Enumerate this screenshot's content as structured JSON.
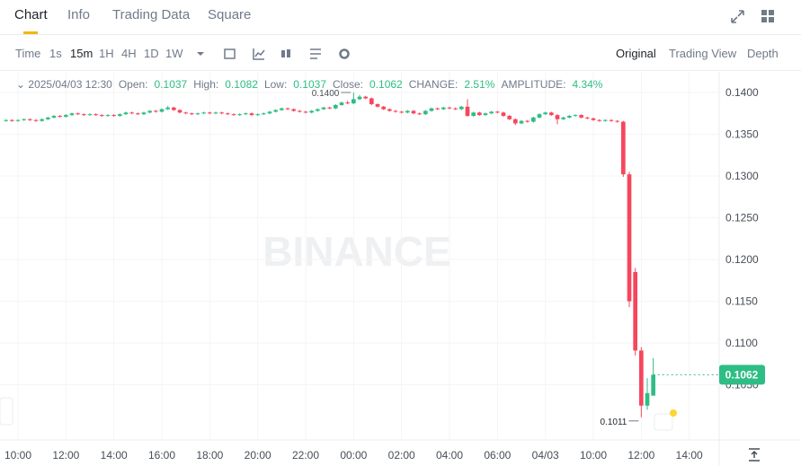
{
  "tabs": [
    "Chart",
    "Info",
    "Trading Data",
    "Square"
  ],
  "toolbar": {
    "intervals": [
      "Time",
      "1s",
      "15m",
      "1H",
      "4H",
      "1D",
      "1W"
    ],
    "views": [
      "Original",
      "Trading View",
      "Depth"
    ]
  },
  "info": {
    "date": "2025/04/03 12:30",
    "open_label": "Open:",
    "high_label": "High:",
    "low_label": "Low:",
    "close_label": "Close:",
    "change_label": "CHANGE:",
    "change": "2.51%",
    "amplitude_label": "AMPLITUDE:",
    "amplitude": "4.34%"
  },
  "watermark": "BINANCE",
  "chart_data": {
    "type": "candlestick",
    "up_color": "#2ebd85",
    "down_color": "#f6465d",
    "grid": true,
    "xlim": [
      9.25,
      39.25
    ],
    "xticks": [
      {
        "value": 10,
        "label": "10:00"
      },
      {
        "value": 12,
        "label": "12:00"
      },
      {
        "value": 14,
        "label": "14:00"
      },
      {
        "value": 16,
        "label": "16:00"
      },
      {
        "value": 18,
        "label": "18:00"
      },
      {
        "value": 20,
        "label": "20:00"
      },
      {
        "value": 22,
        "label": "22:00"
      },
      {
        "value": 24,
        "label": "00:00"
      },
      {
        "value": 26,
        "label": "02:00"
      },
      {
        "value": 28,
        "label": "04:00"
      },
      {
        "value": 30,
        "label": "06:00"
      },
      {
        "value": 32,
        "label": "04/03"
      },
      {
        "value": 34,
        "label": "10:00"
      },
      {
        "value": 36,
        "label": "12:00"
      },
      {
        "value": 38,
        "label": "14:00"
      }
    ],
    "ylim": [
      0.09839,
      0.14226
    ],
    "yticks": [
      {
        "value": 0.105,
        "label": "0.1050"
      },
      {
        "value": 0.11,
        "label": "0.1100"
      },
      {
        "value": 0.115,
        "label": "0.1150"
      },
      {
        "value": 0.12,
        "label": "0.1200"
      },
      {
        "value": 0.125,
        "label": "0.1250"
      },
      {
        "value": 0.13,
        "label": "0.1300"
      },
      {
        "value": 0.135,
        "label": "0.1350"
      },
      {
        "value": 0.14,
        "label": "0.1400"
      }
    ],
    "annotations": {
      "high": "0.1400",
      "low": "0.1011"
    },
    "x": [
      9.5,
      9.75,
      10,
      10.25,
      10.5,
      10.75,
      11,
      11.25,
      11.5,
      11.75,
      12,
      12.25,
      12.5,
      12.75,
      13,
      13.25,
      13.5,
      13.75,
      14,
      14.25,
      14.5,
      14.75,
      15,
      15.25,
      15.5,
      15.75,
      16,
      16.25,
      16.5,
      16.75,
      17,
      17.25,
      17.5,
      17.75,
      18,
      18.25,
      18.5,
      18.75,
      19,
      19.25,
      19.5,
      19.75,
      20,
      20.25,
      20.5,
      20.75,
      21,
      21.25,
      21.5,
      21.75,
      22,
      22.25,
      22.5,
      22.75,
      23,
      23.25,
      23.5,
      23.75,
      24,
      24.25,
      24.5,
      24.75,
      25,
      25.25,
      25.5,
      25.75,
      26,
      26.25,
      26.5,
      26.75,
      27,
      27.25,
      27.5,
      27.75,
      28,
      28.25,
      28.5,
      28.75,
      29,
      29.25,
      29.5,
      29.75,
      30,
      30.25,
      30.5,
      30.75,
      31,
      31.25,
      31.5,
      31.75,
      32,
      32.25,
      32.5,
      32.75,
      33,
      33.25,
      33.5,
      33.75,
      34,
      34.25,
      34.5,
      34.75,
      35,
      35.25,
      35.5,
      35.75,
      36,
      36.25,
      36.5
    ],
    "open": [
      0.1366,
      0.1367,
      0.1366,
      0.1367,
      0.1368,
      0.1367,
      0.1366,
      0.1368,
      0.137,
      0.1372,
      0.1371,
      0.1373,
      0.1375,
      0.1374,
      0.1373,
      0.1374,
      0.1373,
      0.1372,
      0.1373,
      0.1372,
      0.1374,
      0.1376,
      0.1375,
      0.1374,
      0.1376,
      0.1378,
      0.1377,
      0.138,
      0.1382,
      0.1379,
      0.1376,
      0.1375,
      0.1374,
      0.1375,
      0.1376,
      0.1375,
      0.1376,
      0.1375,
      0.1374,
      0.1373,
      0.1374,
      0.1375,
      0.1373,
      0.1374,
      0.1375,
      0.1377,
      0.1379,
      0.1381,
      0.138,
      0.1378,
      0.1377,
      0.1376,
      0.1378,
      0.138,
      0.1382,
      0.1381,
      0.1385,
      0.1388,
      0.1387,
      0.1392,
      0.1395,
      0.1393,
      0.1386,
      0.1383,
      0.138,
      0.1378,
      0.1377,
      0.1376,
      0.1378,
      0.1375,
      0.1374,
      0.1378,
      0.1381,
      0.138,
      0.1382,
      0.1381,
      0.138,
      0.1383,
      0.1372,
      0.1376,
      0.1373,
      0.1375,
      0.1377,
      0.1376,
      0.1372,
      0.1368,
      0.1363,
      0.1366,
      0.1365,
      0.137,
      0.1374,
      0.1376,
      0.1373,
      0.1368,
      0.137,
      0.1372,
      0.1373,
      0.137,
      0.1369,
      0.1367,
      0.1366,
      0.1367,
      0.1366,
      0.1365,
      0.1302,
      0.1185,
      0.1091,
      0.1025,
      0.1037
    ],
    "high": [
      0.1368,
      0.1368,
      0.1368,
      0.1369,
      0.1369,
      0.1368,
      0.1369,
      0.1371,
      0.1373,
      0.1373,
      0.1374,
      0.1376,
      0.1376,
      0.1375,
      0.1375,
      0.1375,
      0.1374,
      0.1374,
      0.1374,
      0.1375,
      0.1377,
      0.1377,
      0.1376,
      0.1377,
      0.1379,
      0.1379,
      0.1381,
      0.1384,
      0.1383,
      0.138,
      0.1377,
      0.1376,
      0.1376,
      0.1377,
      0.1377,
      0.1377,
      0.1377,
      0.1376,
      0.1375,
      0.1375,
      0.1376,
      0.1376,
      0.1375,
      0.1376,
      0.1378,
      0.138,
      0.1382,
      0.1382,
      0.1381,
      0.1379,
      0.1378,
      0.1379,
      0.1381,
      0.1383,
      0.1383,
      0.1386,
      0.1389,
      0.139,
      0.14,
      0.1397,
      0.1396,
      0.1394,
      0.1387,
      0.1384,
      0.1381,
      0.1379,
      0.1378,
      0.1379,
      0.1379,
      0.1376,
      0.1379,
      0.1382,
      0.1382,
      0.1383,
      0.1383,
      0.1382,
      0.1384,
      0.1392,
      0.1377,
      0.1377,
      0.1376,
      0.1378,
      0.1378,
      0.1377,
      0.1373,
      0.1369,
      0.1367,
      0.1367,
      0.1371,
      0.1375,
      0.1377,
      0.1377,
      0.1374,
      0.1371,
      0.1373,
      0.1374,
      0.1374,
      0.1371,
      0.137,
      0.1368,
      0.1368,
      0.1368,
      0.1367,
      0.1366,
      0.1305,
      0.119,
      0.1095,
      0.1058,
      0.1082
    ],
    "low": [
      0.1365,
      0.1365,
      0.1365,
      0.1366,
      0.1366,
      0.1365,
      0.1365,
      0.1367,
      0.1369,
      0.137,
      0.137,
      0.1372,
      0.1373,
      0.1372,
      0.1372,
      0.1372,
      0.1371,
      0.1371,
      0.1371,
      0.1371,
      0.1373,
      0.1374,
      0.1373,
      0.1373,
      0.1375,
      0.1376,
      0.1376,
      0.1379,
      0.1378,
      0.1375,
      0.1374,
      0.1373,
      0.1373,
      0.1374,
      0.1374,
      0.1374,
      0.1374,
      0.1373,
      0.1372,
      0.1372,
      0.1373,
      0.1372,
      0.1372,
      0.1373,
      0.1374,
      0.1376,
      0.1378,
      0.1379,
      0.1377,
      0.1376,
      0.1375,
      0.1375,
      0.1377,
      0.1379,
      0.138,
      0.138,
      0.1384,
      0.1386,
      0.1386,
      0.1391,
      0.1392,
      0.1385,
      0.1382,
      0.1379,
      0.1377,
      0.1376,
      0.1375,
      0.1375,
      0.1374,
      0.1373,
      0.1373,
      0.1377,
      0.1379,
      0.1379,
      0.138,
      0.1379,
      0.1379,
      0.1371,
      0.1371,
      0.1372,
      0.1372,
      0.1374,
      0.1375,
      0.1371,
      0.1367,
      0.1361,
      0.1362,
      0.1364,
      0.1364,
      0.1369,
      0.1373,
      0.1372,
      0.1362,
      0.1367,
      0.1369,
      0.1371,
      0.1369,
      0.1368,
      0.1366,
      0.1365,
      0.1365,
      0.1365,
      0.1364,
      0.1299,
      0.1143,
      0.1085,
      0.1011,
      0.102,
      0.1037
    ],
    "close": [
      0.1367,
      0.1366,
      0.1367,
      0.1368,
      0.1367,
      0.1366,
      0.1368,
      0.137,
      0.1372,
      0.1371,
      0.1373,
      0.1375,
      0.1374,
      0.1373,
      0.1374,
      0.1373,
      0.1372,
      0.1373,
      0.1372,
      0.1374,
      0.1376,
      0.1375,
      0.1374,
      0.1376,
      0.1378,
      0.1377,
      0.138,
      0.1382,
      0.1379,
      0.1376,
      0.1375,
      0.1374,
      0.1375,
      0.1376,
      0.1375,
      0.1376,
      0.1375,
      0.1374,
      0.1373,
      0.1374,
      0.1375,
      0.1373,
      0.1374,
      0.1375,
      0.1377,
      0.1379,
      0.1381,
      0.138,
      0.1378,
      0.1377,
      0.1376,
      0.1378,
      0.138,
      0.1382,
      0.1381,
      0.1385,
      0.1388,
      0.1387,
      0.1392,
      0.1395,
      0.1393,
      0.1386,
      0.1383,
      0.138,
      0.1378,
      0.1377,
      0.1376,
      0.1378,
      0.1375,
      0.1374,
      0.1378,
      0.1381,
      0.138,
      0.1382,
      0.1381,
      0.138,
      0.1383,
      0.1372,
      0.1376,
      0.1373,
      0.1375,
      0.1377,
      0.1376,
      0.1372,
      0.1368,
      0.1363,
      0.1366,
      0.1365,
      0.137,
      0.1374,
      0.1376,
      0.1373,
      0.1368,
      0.137,
      0.1372,
      0.1373,
      0.137,
      0.1369,
      0.1367,
      0.1366,
      0.1367,
      0.1366,
      0.1365,
      0.1302,
      0.115,
      0.1091,
      0.1025,
      0.104,
      0.1062
    ]
  }
}
